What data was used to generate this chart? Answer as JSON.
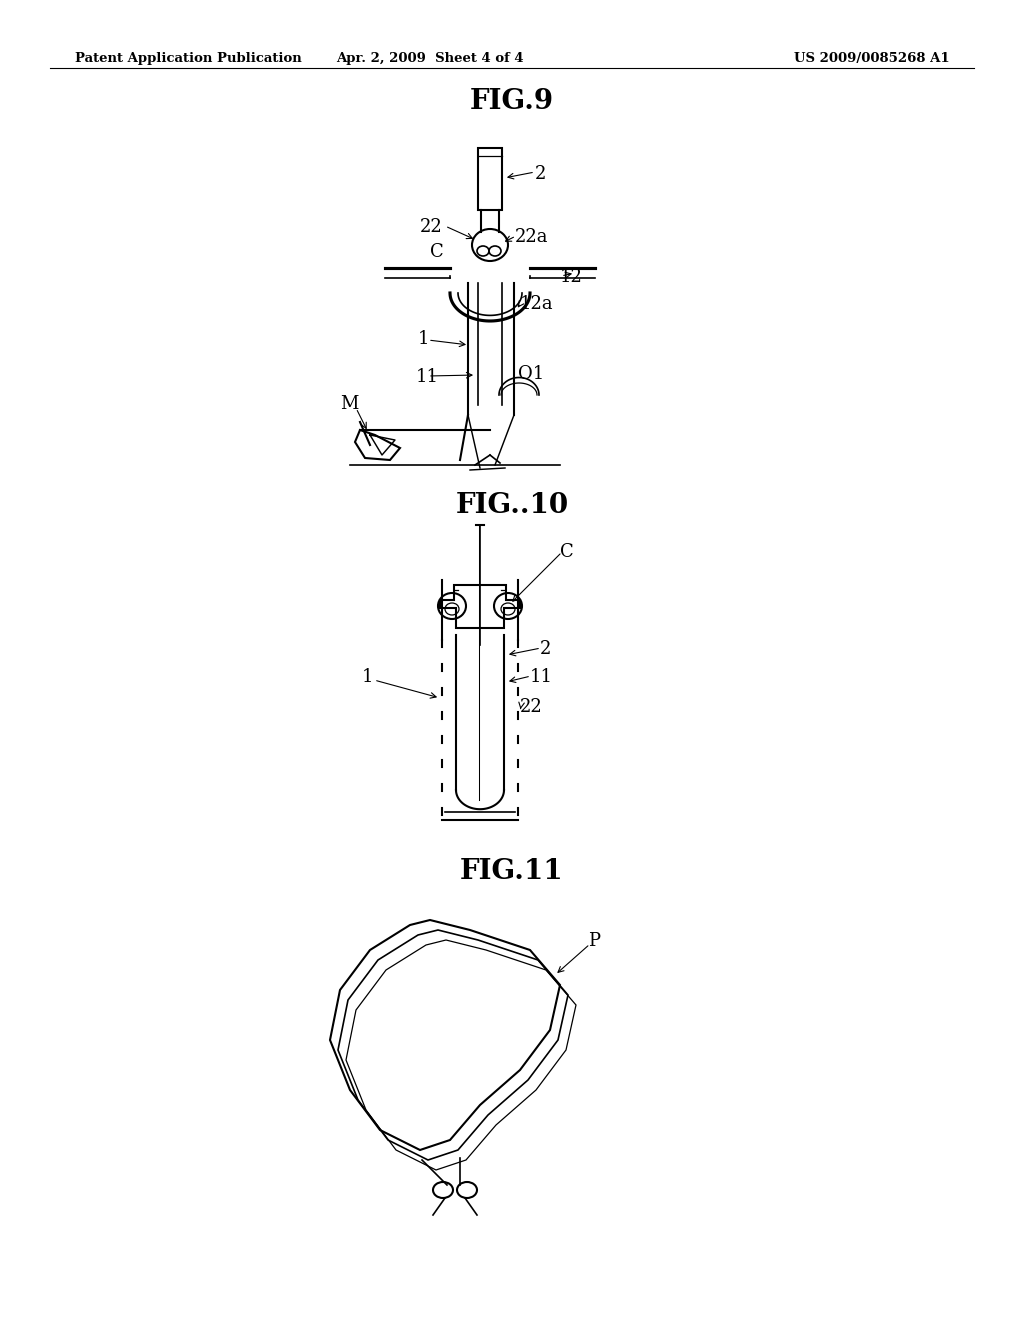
{
  "header_left": "Patent Application Publication",
  "header_center": "Apr. 2, 2009  Sheet 4 of 4",
  "header_right": "US 2009/0085268 A1",
  "fig9_title": "FIG.9",
  "fig10_title": "FIG..10",
  "fig11_title": "FIG.11",
  "background_color": "#ffffff",
  "line_color": "#000000"
}
